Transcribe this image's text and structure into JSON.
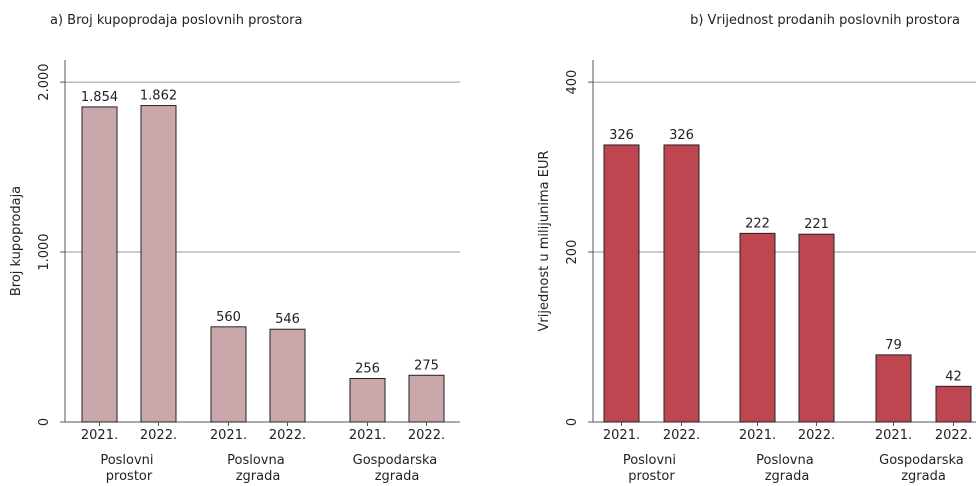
{
  "chart_data": [
    {
      "type": "bar",
      "title": "a) Broj kupoprodaja poslovnih prostora",
      "ylabel": "Broj kupoprodaja",
      "categories": [
        "Poslovni prostor",
        "Poslovna zgrada",
        "Gospodarska zgrada"
      ],
      "series": [
        {
          "name": "2021.",
          "color": "#c9a7aa",
          "values": [
            1854,
            560,
            256
          ],
          "value_labels": [
            "1.854",
            "560",
            "256"
          ]
        },
        {
          "name": "2022.",
          "color": "#c9a7aa",
          "values": [
            1862,
            546,
            275
          ],
          "value_labels": [
            "1.862",
            "546",
            "275"
          ]
        }
      ],
      "ylim": [
        0,
        2130
      ],
      "yticks": [
        0,
        {
          "value": 1000,
          "label": "1.000"
        },
        {
          "value": 2000,
          "label": "2.000"
        }
      ],
      "grid": true
    },
    {
      "type": "bar",
      "title": "b) Vrijednost prodanih poslovnih prostora",
      "ylabel": "Vrijednost u milijunima EUR",
      "categories": [
        "Poslovni prostor",
        "Poslovna zgrada",
        "Gospodarska zgrada"
      ],
      "series": [
        {
          "name": "2021.",
          "color": "#be4650",
          "values": [
            326,
            222,
            79
          ]
        },
        {
          "name": "2022.",
          "color": "#be4650",
          "values": [
            326,
            221,
            42
          ]
        }
      ],
      "ylim": [
        0,
        426
      ],
      "yticks": [
        0,
        200,
        400
      ],
      "grid": true
    }
  ]
}
